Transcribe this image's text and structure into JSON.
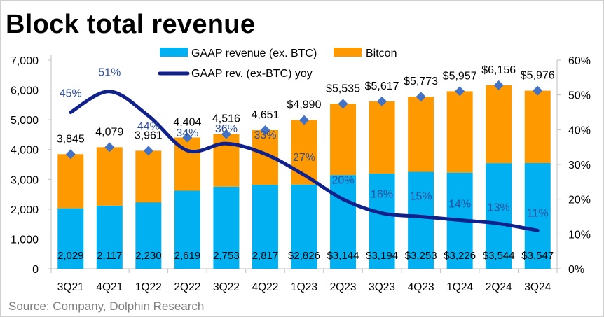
{
  "title": "Block total revenue",
  "source": "Source: Company, Dolphin Research",
  "chart_data": {
    "type": "bar",
    "stacked": true,
    "categories": [
      "3Q21",
      "4Q21",
      "1Q22",
      "2Q22",
      "3Q22",
      "4Q22",
      "1Q23",
      "2Q23",
      "3Q23",
      "4Q23",
      "1Q24",
      "2Q24",
      "3Q24"
    ],
    "series": [
      {
        "name": "GAAP revenue (ex. BTC)",
        "type": "bar",
        "color": "#00B0F0",
        "axis": "left",
        "values": [
          2029,
          2117,
          2230,
          2619,
          2753,
          2817,
          2826,
          3144,
          3194,
          3253,
          3226,
          3544,
          3547
        ],
        "labels": [
          "2,029",
          "2,117",
          "2,230",
          "2,619",
          "2,753",
          "2,817",
          "$2,826",
          "$3,144",
          "$3,194",
          "$3,253",
          "$3,226",
          "$3,544",
          "$3,547"
        ]
      },
      {
        "name": "Bitcon",
        "type": "bar",
        "color": "#FF9900",
        "axis": "left",
        "values": [
          1816,
          1962,
          1731,
          1785,
          1763,
          1834,
          2164,
          2391,
          2423,
          2520,
          2731,
          2612,
          2429
        ]
      },
      {
        "name": "GAAP rev. (ex-BTC) yoy",
        "type": "line",
        "color": "#10218B",
        "axis": "right",
        "unit": "%",
        "values": [
          45,
          51,
          44,
          34,
          36,
          33,
          27,
          20,
          16,
          15,
          14,
          13,
          11
        ],
        "labels": [
          "45%",
          "51%",
          "44%",
          "34%",
          "36%",
          "33%",
          "27%",
          "20%",
          "16%",
          "15%",
          "14%",
          "13%",
          "11%"
        ]
      }
    ],
    "totals": {
      "marker": "diamond",
      "color": "#4472C4",
      "values": [
        3845,
        4079,
        3961,
        4404,
        4516,
        4651,
        4990,
        5535,
        5617,
        5773,
        5957,
        6156,
        5976
      ],
      "labels": [
        "3,845",
        "4,079",
        "3,961",
        "4,404",
        "4,516",
        "4,651",
        "$4,990",
        "$5,535",
        "$5,617",
        "$5,773",
        "$5,957",
        "$6,156",
        "$5,976"
      ]
    },
    "y_left": {
      "range": [
        0,
        7000
      ],
      "ticks": [
        "0",
        "1,000",
        "2,000",
        "3,000",
        "4,000",
        "5,000",
        "6,000",
        "7,000"
      ]
    },
    "y_right": {
      "range": [
        0,
        60
      ],
      "ticks": [
        "0%",
        "10%",
        "20%",
        "30%",
        "40%",
        "50%",
        "60%"
      ]
    },
    "grid": false,
    "legend": "top"
  }
}
